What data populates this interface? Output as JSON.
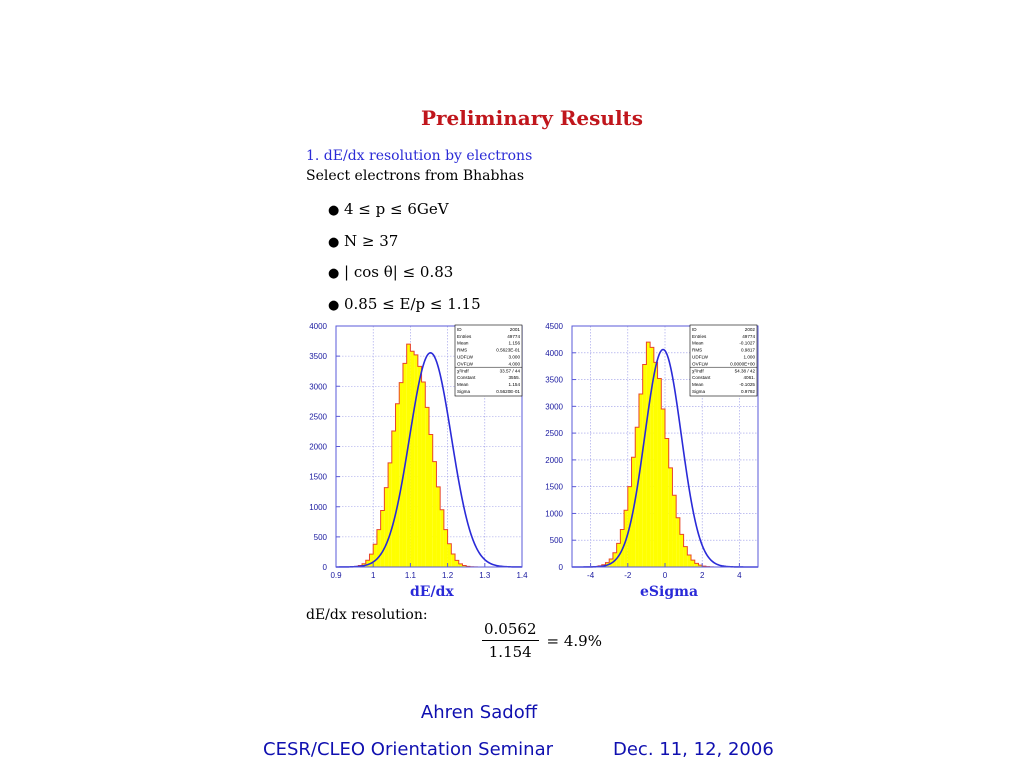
{
  "slide": {
    "title": "Preliminary Results",
    "section": "1. dE/dx resolution by electrons",
    "subline": "Select electrons from Bhabhas",
    "bullets": [
      "4 ≤ p ≤ 6GeV",
      "N ≥ 37",
      "| cos θ| ≤ 0.83",
      "0.85 ≤ E/p ≤ 1.15"
    ],
    "resolution_label": "dE/dx resolution:",
    "formula": {
      "numerator": "0.0562",
      "denominator": "1.154",
      "result": "= 4.9%"
    },
    "author": "Ahren Sadoff",
    "footer_left": "CESR/CLEO Orientation Seminar",
    "footer_right": "Dec. 11, 12, 2006"
  },
  "chart_data": [
    {
      "type": "bar",
      "histogram": true,
      "xlabel": "dE/dx",
      "ylabel": "",
      "xlim": [
        0.9,
        1.4
      ],
      "ylim": [
        0,
        4000
      ],
      "xticks": [
        "0.9",
        "1",
        "1.1",
        "1.2",
        "1.3",
        "1.4"
      ],
      "yticks": [
        "0",
        "500",
        "1000",
        "1500",
        "2000",
        "2500",
        "3000",
        "3500",
        "4000"
      ],
      "grid": true,
      "fill_color": "#ffff00",
      "hist_line_color": "#e8442a",
      "fit_color": "#2a2ad8",
      "bins": {
        "low": 0.9,
        "high": 1.4,
        "width": 0.01
      },
      "values": [
        0,
        0,
        0,
        1,
        4,
        10,
        24,
        54,
        111,
        213,
        378,
        620,
        938,
        1318,
        1728,
        2258,
        2710,
        3060,
        3380,
        3700,
        3580,
        3520,
        3330,
        3070,
        2650,
        2200,
        1750,
        1330,
        950,
        620,
        385,
        215,
        110,
        52,
        24,
        10,
        4,
        2,
        0,
        0,
        0,
        0,
        0,
        0,
        0,
        0,
        0,
        0,
        0,
        0
      ],
      "fit": {
        "function": "gaussian",
        "constant": 3555,
        "mean": 1.154,
        "sigma": 0.0562
      },
      "statbox": [
        [
          "ID",
          "2001"
        ],
        [
          "Entries",
          "49774"
        ],
        [
          "Mean",
          "1.156"
        ],
        [
          "RMS",
          "0.5623E-01"
        ],
        [
          "UDFLW",
          "3.000"
        ],
        [
          "OVFLW",
          "4.000"
        ],
        [
          "χ²/ndf",
          "33.57 / 44"
        ],
        [
          "Constant",
          "3555."
        ],
        [
          "Mean",
          "1.154"
        ],
        [
          "Sigma",
          "0.5620E-01"
        ]
      ]
    },
    {
      "type": "bar",
      "histogram": true,
      "xlabel": "eSigma",
      "ylabel": "",
      "xlim": [
        -5,
        5
      ],
      "ylim": [
        0,
        4500
      ],
      "xticks": [
        "-4",
        "-2",
        "0",
        "2",
        "4"
      ],
      "yticks": [
        "0",
        "500",
        "1000",
        "1500",
        "2000",
        "2500",
        "3000",
        "3500",
        "4000",
        "4500"
      ],
      "grid": true,
      "fill_color": "#ffff00",
      "hist_line_color": "#e8442a",
      "fit_color": "#2a2ad8",
      "bins": {
        "low": -5,
        "high": 5,
        "width": 0.2
      },
      "values": [
        0,
        0,
        0,
        1,
        2,
        5,
        10,
        20,
        42,
        82,
        150,
        265,
        440,
        700,
        1060,
        1500,
        2050,
        2610,
        3230,
        3780,
        4200,
        4100,
        3820,
        3520,
        2950,
        2400,
        1850,
        1340,
        920,
        610,
        380,
        225,
        128,
        68,
        34,
        16,
        7,
        3,
        1,
        0,
        0,
        0,
        0,
        0,
        0,
        0,
        0,
        0,
        0,
        0
      ],
      "fit": {
        "function": "gaussian",
        "constant": 4061,
        "mean": -0.1025,
        "sigma": 0.9792
      },
      "statbox": [
        [
          "ID",
          "2002"
        ],
        [
          "Entries",
          "49774"
        ],
        [
          "Mean",
          "-0.1027"
        ],
        [
          "RMS",
          "0.9817"
        ],
        [
          "UDFLW",
          "1.000"
        ],
        [
          "OVFLW",
          "0.0000E+00"
        ],
        [
          "χ²/ndf",
          "54.38 / 42"
        ],
        [
          "Constant",
          "4061."
        ],
        [
          "Mean",
          "-0.1025"
        ],
        [
          "Sigma",
          "0.9792"
        ]
      ]
    }
  ]
}
